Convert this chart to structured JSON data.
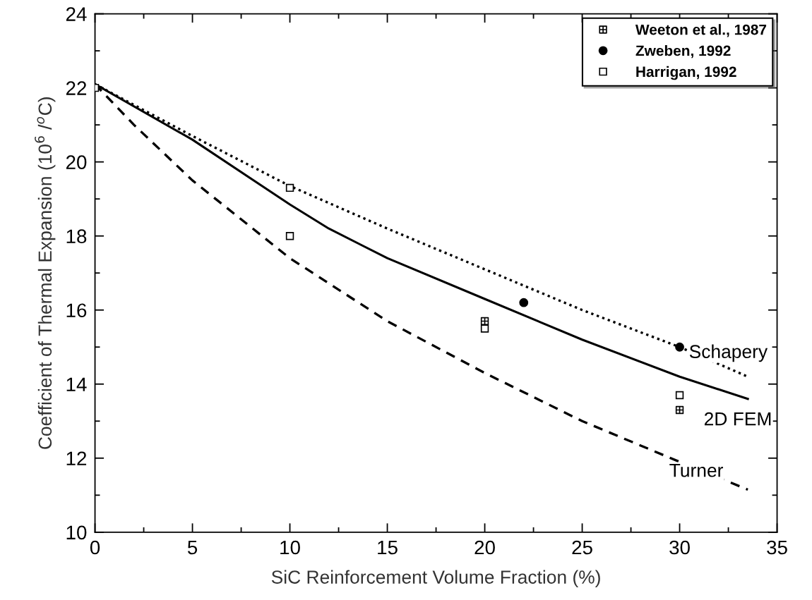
{
  "chart_data": {
    "type": "line",
    "xlabel": "SiC Reinforcement Volume Fraction (%)",
    "ylabel": "Coefficient of Thermal Expansion (10$^{6}$ /$^{o}$C)",
    "xlim": [
      0,
      35
    ],
    "xticks": [
      0,
      5,
      10,
      15,
      20,
      25,
      30,
      35
    ],
    "ylim": [
      10,
      24
    ],
    "yticks": [
      10,
      12,
      14,
      16,
      18,
      20,
      22,
      24
    ],
    "grid": false,
    "legend": "top right",
    "series": [
      {
        "type": "scatter",
        "name": "Weeton et al., 1987",
        "color": "#000000",
        "marker": "cross",
        "x": [
          20,
          30
        ],
        "values": [
          15.7,
          13.3
        ]
      },
      {
        "type": "scatter",
        "name": "Zweben, 1992",
        "color": "#000000",
        "marker": "circle",
        "x": [
          22,
          30
        ],
        "values": [
          16.2,
          15.0
        ]
      },
      {
        "type": "scatter",
        "name": "Harrigan, 1992",
        "color": "#000000",
        "marker": "square",
        "x": [
          0,
          10,
          10,
          20,
          30
        ],
        "values": [
          22.0,
          19.3,
          18.0,
          15.5,
          13.7
        ]
      },
      {
        "name": "Schapery",
        "color": "#000000",
        "line_style": "dotted",
        "x": [
          0,
          5,
          10,
          15,
          20,
          25,
          30,
          33.5
        ],
        "values": [
          22.1,
          20.7,
          19.35,
          18.2,
          17.1,
          16.0,
          15.0,
          14.2
        ]
      },
      {
        "name": "2D FEM",
        "color": "#000000",
        "line_style": "solid",
        "x": [
          0,
          5,
          10,
          12,
          15,
          20,
          25,
          30,
          33.5
        ],
        "values": [
          22.1,
          20.6,
          18.85,
          18.2,
          17.4,
          16.3,
          15.2,
          14.2,
          13.6
        ]
      },
      {
        "name": "Turner",
        "color": "#000000",
        "line_style": "dashed",
        "x": [
          0,
          2,
          5,
          10,
          15,
          20,
          25,
          30,
          33.5
        ],
        "values": [
          22.1,
          21.0,
          19.5,
          17.4,
          15.7,
          14.3,
          13.0,
          11.9,
          11.15
        ]
      }
    ]
  }
}
